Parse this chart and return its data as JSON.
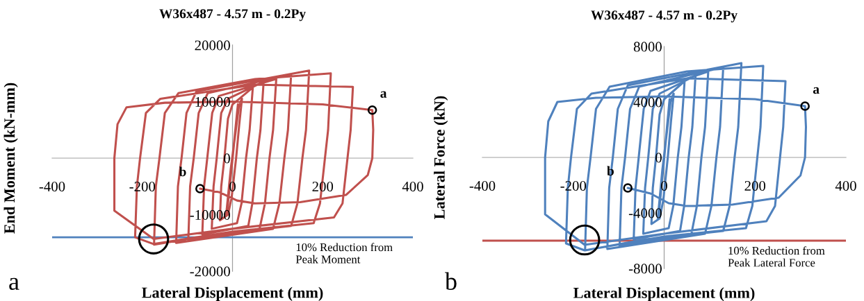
{
  "chart_data": [
    {
      "type": "line",
      "title": "W36x487 - 4.57 m - 0.2Py",
      "xlabel": "Lateral Displacement (mm)",
      "ylabel": "End Moment (kN-mm)",
      "xlim": [
        -400,
        400
      ],
      "xticks": [
        -400,
        -200,
        0,
        200,
        400
      ],
      "ylim": [
        -20000,
        20000
      ],
      "yticks": [
        -20000,
        -10000,
        0,
        10000,
        20000
      ],
      "grid": false,
      "legend": false,
      "series": [
        {
          "type": "line",
          "color": "#c0504d",
          "x": [
            0,
            10,
            12,
            4,
            -10,
            -14,
            -4,
            14,
            18,
            21,
            15,
            8,
            -2,
            -10,
            -28,
            -25,
            -18,
            -10,
            0,
            45,
            38,
            30,
            20,
            10,
            -46,
            -42,
            -35,
            -25,
            -10,
            69,
            62,
            54,
            44,
            35,
            -67,
            -63,
            -56,
            -45,
            -30,
            97,
            90,
            82,
            72,
            60,
            -98,
            -94,
            -86,
            -75,
            -55,
            130,
            123,
            115,
            104,
            90,
            -125,
            -121,
            -113,
            -102,
            -80,
            170,
            163,
            155,
            144,
            130,
            -40,
            -174,
            -170,
            -162,
            -150,
            -120,
            50,
            218,
            212,
            205,
            194,
            180,
            0,
            -175,
            -216,
            -212,
            -205,
            -192,
            -160,
            50,
            267,
            262,
            255,
            244,
            225,
            0,
            -175,
            -262,
            -262,
            -255,
            -235,
            -150,
            0,
            200,
            310,
            312,
            310,
            300,
            252,
            150,
            50,
            10,
            -30,
            -72
          ],
          "values": [
            0,
            8000,
            9500,
            3000,
            -8000,
            -10000,
            -2000,
            9000,
            10000,
            10500,
            6000,
            0,
            -7000,
            -10000,
            -11000,
            -5000,
            0,
            7000,
            9500,
            12500,
            5000,
            0,
            -8000,
            -11500,
            -12500,
            -5000,
            0,
            8000,
            10500,
            13500,
            5000,
            0,
            -8000,
            -12000,
            -13500,
            -5000,
            0,
            8000,
            11000,
            14000,
            5000,
            0,
            -8000,
            -12500,
            -14500,
            -5000,
            0,
            8000,
            11500,
            14800,
            5000,
            0,
            -8000,
            -12500,
            -15000,
            -5000,
            0,
            8000,
            11800,
            15500,
            5000,
            0,
            -8000,
            -12000,
            -13500,
            -15300,
            -5000,
            0,
            8000,
            11500,
            14000,
            15000,
            5000,
            0,
            -8000,
            -11500,
            -13000,
            -15200,
            -14000,
            -5000,
            0,
            8000,
            10500,
            13000,
            12600,
            5000,
            0,
            -8000,
            -10500,
            -12500,
            -14300,
            -9300,
            0,
            6000,
            9000,
            9800,
            10000,
            9500,
            8500,
            5000,
            0,
            -3000,
            -6500,
            -7800,
            -8000,
            -7500,
            -6000,
            -5400
          ]
        },
        {
          "type": "scatter",
          "color": "#000000",
          "marker": "circle",
          "x": [
            310,
            -72
          ],
          "values": [
            8500,
            -5400
          ]
        },
        {
          "type": "scatter",
          "color": "#000000",
          "marker": "circle",
          "x": [
            -175
          ],
          "values": [
            -14300
          ]
        }
      ],
      "ref_lines": [
        {
          "axis": "y",
          "value": -14000,
          "label": "10% Reduction from\nPeak Moment",
          "color": "#4f81bd"
        }
      ],
      "annotations": [
        "a",
        {
          "text": "a",
          "x": 310,
          "y": 8500
        },
        {
          "text": "b",
          "x": -72,
          "y": -5400
        }
      ]
    },
    {
      "type": "line",
      "title": "W36x487 - 4.57 m - 0.2Py",
      "xlabel": "Lateral Displacement (mm)",
      "ylabel": "Lateral Force (kN)",
      "xlim": [
        -400,
        400
      ],
      "xticks": [
        -400,
        -200,
        0,
        200,
        400
      ],
      "ylim": [
        -8000,
        8000
      ],
      "yticks": [
        -8000,
        -4000,
        0,
        4000,
        8000
      ],
      "grid": false,
      "legend": false,
      "series": [
        {
          "type": "line",
          "color": "#4f81bd",
          "x": [
            0,
            10,
            12,
            4,
            -10,
            -14,
            -4,
            14,
            18,
            21,
            15,
            8,
            -2,
            -10,
            -28,
            -25,
            -18,
            -10,
            0,
            45,
            38,
            30,
            20,
            10,
            -46,
            -42,
            -35,
            -25,
            -10,
            69,
            62,
            54,
            44,
            35,
            -67,
            -63,
            -56,
            -45,
            -30,
            97,
            90,
            82,
            72,
            60,
            -98,
            -94,
            -86,
            -75,
            -55,
            130,
            123,
            115,
            104,
            90,
            -125,
            -121,
            -113,
            -102,
            -80,
            170,
            163,
            155,
            144,
            130,
            -40,
            -174,
            -170,
            -162,
            -150,
            -120,
            50,
            218,
            212,
            205,
            194,
            180,
            0,
            -175,
            -216,
            -212,
            -205,
            -192,
            -160,
            50,
            267,
            262,
            255,
            244,
            225,
            0,
            -175,
            -262,
            -262,
            -255,
            -235,
            -150,
            0,
            200,
            310,
            312,
            310,
            300,
            252,
            150,
            50,
            10,
            -30,
            -80
          ],
          "values": [
            0,
            3500,
            4200,
            1300,
            -3500,
            -4400,
            -900,
            4000,
            4400,
            4600,
            2600,
            0,
            -3100,
            -4400,
            -4800,
            -2200,
            0,
            3100,
            4200,
            5500,
            2200,
            0,
            -3500,
            -5100,
            -5500,
            -2200,
            0,
            3500,
            4600,
            5900,
            2200,
            0,
            -3500,
            -5300,
            -5900,
            -2200,
            0,
            3500,
            4800,
            6200,
            2200,
            0,
            -3500,
            -5500,
            -6400,
            -2200,
            0,
            3500,
            5100,
            6500,
            2200,
            0,
            -3500,
            -5500,
            -6600,
            -2200,
            0,
            3500,
            5200,
            6800,
            2200,
            0,
            -3500,
            -5300,
            -5900,
            -6700,
            -2200,
            0,
            3500,
            5100,
            6200,
            6600,
            2200,
            0,
            -3500,
            -5100,
            -5700,
            -6700,
            -6200,
            -2200,
            0,
            3500,
            4600,
            5700,
            5500,
            2200,
            0,
            -3500,
            -4600,
            -5500,
            -6300,
            -4100,
            0,
            2600,
            4000,
            4300,
            4400,
            4200,
            3700,
            2200,
            0,
            -1300,
            -2900,
            -3400,
            -3500,
            -3300,
            -2600,
            -2200
          ]
        },
        {
          "type": "scatter",
          "color": "#000000",
          "marker": "circle",
          "x": [
            310,
            -80
          ],
          "values": [
            3700,
            -2200
          ]
        },
        {
          "type": "scatter",
          "color": "#000000",
          "marker": "circle",
          "x": [
            -175
          ],
          "values": [
            -5950
          ]
        }
      ],
      "ref_lines": [
        {
          "axis": "y",
          "value": -6000,
          "label": "10% Reduction from\nPeak Lateral Force",
          "color": "#c0504d"
        }
      ],
      "annotations": [
        "b",
        {
          "text": "a",
          "x": 310,
          "y": 3700
        },
        {
          "text": "b",
          "x": -80,
          "y": -2200
        }
      ]
    }
  ]
}
